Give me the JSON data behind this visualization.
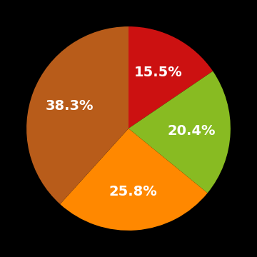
{
  "values": [
    15.5,
    20.4,
    25.8,
    38.3
  ],
  "labels": [
    "15.5%",
    "20.4%",
    "25.8%",
    "38.3%"
  ],
  "colors": [
    "#cc1111",
    "#88bb22",
    "#ff8800",
    "#b85c1a"
  ],
  "background_color": "#000000",
  "label_color": "#ffffff",
  "label_fontsize": 14,
  "startangle": 90,
  "figsize": [
    3.6,
    3.6
  ],
  "dpi": 100
}
